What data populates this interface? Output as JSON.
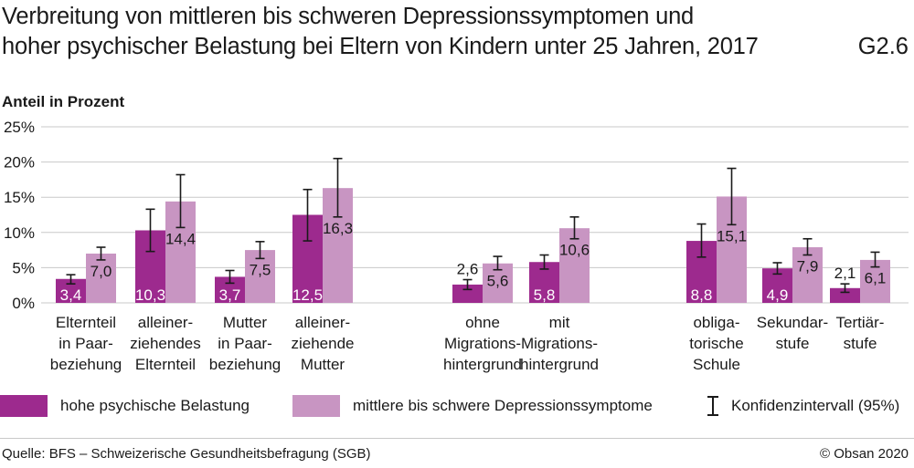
{
  "title_line1": "Verbreitung von mittleren bis schweren Depressionssymptomen und",
  "title_line2": "hoher psychischer Belastung bei Eltern von Kindern unter 25 Jahren, 2017",
  "figure_id": "G2.6",
  "y_axis_title": "Anteil in Prozent",
  "colors": {
    "series1": "#9d2a8e",
    "series2": "#c895c2",
    "ci": "#1a1a1a",
    "grid": "#c8c8c8"
  },
  "legend": {
    "series1": "hohe psychische Belastung",
    "series2": "mittlere bis schwere Depressionssymptome",
    "ci": "Konfidenzintervall (95%)"
  },
  "footer": {
    "source": "Quelle: BFS – Schweizerische Gesundheitsbefragung (SGB)",
    "copyright": "© Obsan 2020"
  },
  "chart_data": {
    "type": "bar",
    "title": "Verbreitung von mittleren bis schweren Depressionssymptomen und hoher psychischer Belastung bei Eltern von Kindern unter 25 Jahren, 2017",
    "ylabel": "Anteil in Prozent",
    "xlabel": "",
    "ylim": [
      0,
      25
    ],
    "yticks": [
      "0%",
      "5%",
      "10%",
      "15%",
      "20%",
      "25%"
    ],
    "grid": true,
    "groups": [
      {
        "categories": [
          0,
          1,
          2,
          3
        ]
      },
      {
        "categories": [
          4,
          5
        ]
      },
      {
        "categories": [
          6,
          7,
          8
        ]
      }
    ],
    "categories": [
      [
        "Elternteil",
        "in Paar-",
        "beziehung"
      ],
      [
        "alleiner-",
        "ziehendes",
        "Elternteil"
      ],
      [
        "Mutter",
        "in Paar-",
        "beziehung"
      ],
      [
        "alleiner-",
        "ziehende",
        "Mutter"
      ],
      [
        "ohne",
        "Migrations-",
        "hintergrund"
      ],
      [
        "mit",
        "Migrations-",
        "hintergrund"
      ],
      [
        "obliga-",
        "torische",
        "Schule"
      ],
      [
        "Sekundar-",
        "stufe"
      ],
      [
        "Tertiär-",
        "stufe"
      ]
    ],
    "series": [
      {
        "name": "hohe psychische Belastung",
        "values": [
          3.4,
          10.3,
          3.7,
          12.5,
          2.6,
          5.8,
          8.8,
          4.9,
          2.1
        ],
        "labels": [
          "3,4",
          "10,3",
          "3,7",
          "12,5",
          "2,6",
          "5,8",
          "8,8",
          "4,9",
          "2,1"
        ],
        "ci_low": [
          2.7,
          7.3,
          2.8,
          8.8,
          1.9,
          4.8,
          6.5,
          4.1,
          1.5
        ],
        "ci_high": [
          4.0,
          13.3,
          4.6,
          16.1,
          3.3,
          6.8,
          11.2,
          5.7,
          2.7
        ]
      },
      {
        "name": "mittlere bis schwere Depressionssymptome",
        "values": [
          7.0,
          14.4,
          7.5,
          16.3,
          5.6,
          10.6,
          15.1,
          7.9,
          6.1
        ],
        "labels": [
          "7,0",
          "14,4",
          "7,5",
          "16,3",
          "5,6",
          "10,6",
          "15,1",
          "7,9",
          "6,1"
        ],
        "ci_low": [
          6.1,
          10.7,
          6.3,
          12.2,
          4.7,
          9.1,
          11.1,
          6.8,
          5.1
        ],
        "ci_high": [
          7.9,
          18.2,
          8.7,
          20.5,
          6.6,
          12.2,
          19.1,
          9.1,
          7.2
        ]
      }
    ]
  }
}
